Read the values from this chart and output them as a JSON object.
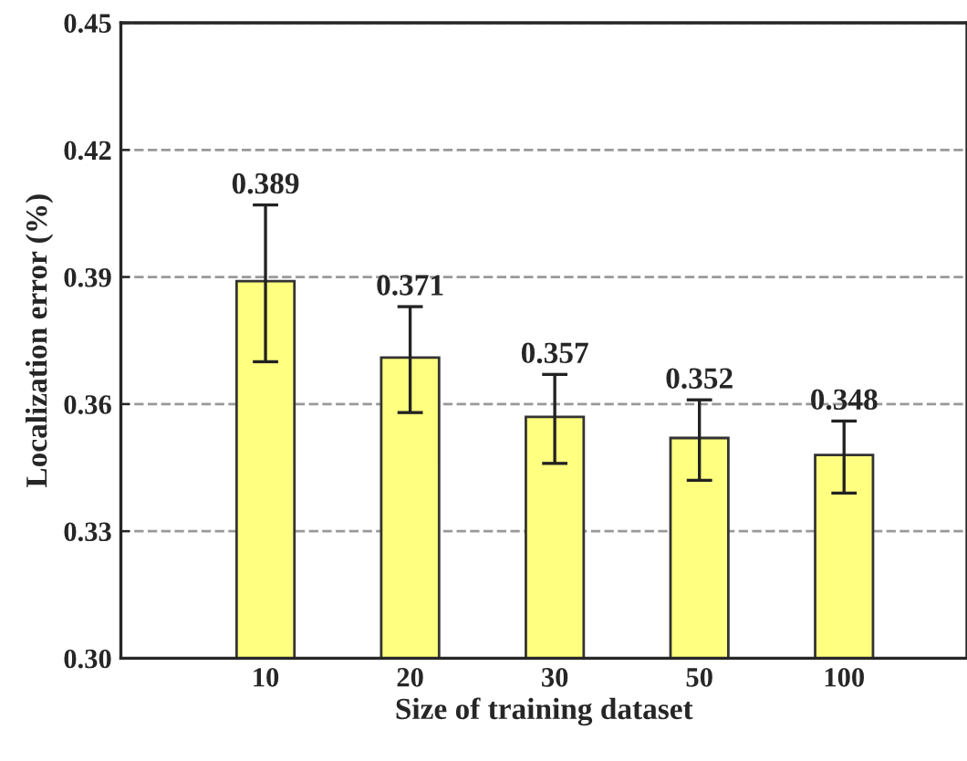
{
  "chart_data": {
    "type": "bar",
    "xlabel": "Size of training dataset",
    "ylabel": "Localization error (%)",
    "categories": [
      "10",
      "20",
      "30",
      "50",
      "100"
    ],
    "values": [
      0.389,
      0.371,
      0.357,
      0.352,
      0.348
    ],
    "errors": [
      [
        0.37,
        0.407
      ],
      [
        0.358,
        0.383
      ],
      [
        0.346,
        0.367
      ],
      [
        0.342,
        0.361
      ],
      [
        0.339,
        0.356
      ]
    ],
    "color": "#ffff80",
    "ylim": [
      0.3,
      0.45
    ],
    "yticks": [
      {
        "value": 0.3,
        "label": "0.30"
      },
      0.33,
      0.36,
      0.39,
      0.42,
      0.45
    ],
    "data_labels": true,
    "grid": "y",
    "line_style": "dashed"
  }
}
